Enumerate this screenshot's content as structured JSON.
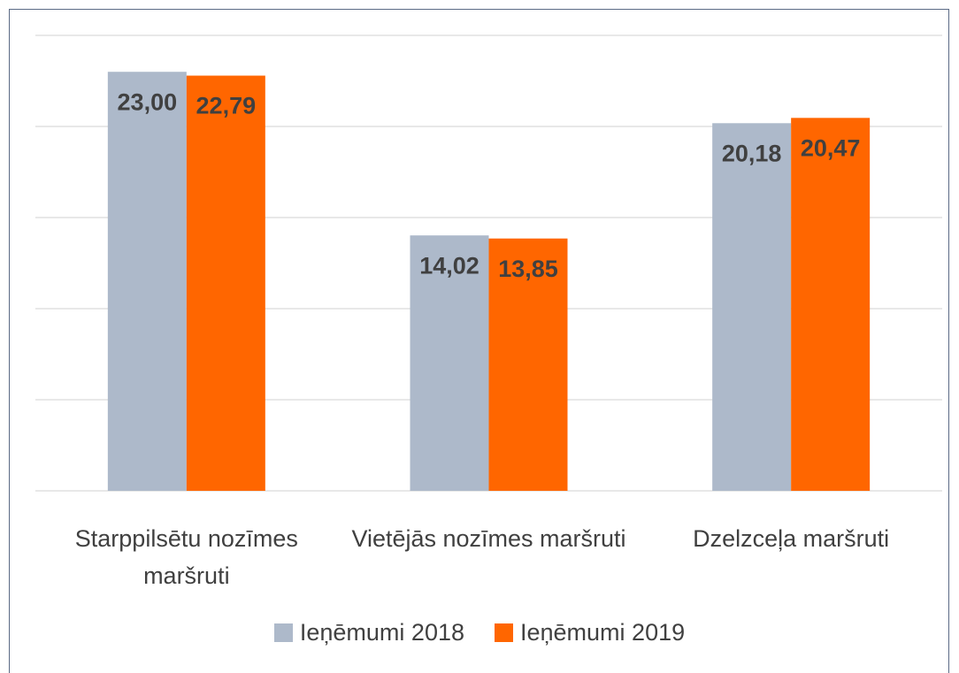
{
  "chart_data": {
    "type": "bar",
    "categories": [
      "Starppilsētu nozīmes maršruti",
      "Vietējās nozīmes maršruti",
      "Dzelzceļa maršruti"
    ],
    "series": [
      {
        "name": "Ieņēmumi 2018",
        "color": "#adb9ca",
        "values": [
          23.0,
          14.02,
          20.18
        ],
        "value_labels": [
          "23,00",
          "14,02",
          "20,18"
        ]
      },
      {
        "name": "Ieņēmumi 2019",
        "color": "#ff6600",
        "values": [
          22.79,
          13.85,
          20.47
        ],
        "value_labels": [
          "22,79",
          "13,85",
          "20,47"
        ]
      }
    ],
    "ylim": [
      0,
      25
    ],
    "yticks": [
      0,
      5,
      10,
      15,
      20,
      25
    ],
    "grid": true,
    "legend": "bottom"
  }
}
